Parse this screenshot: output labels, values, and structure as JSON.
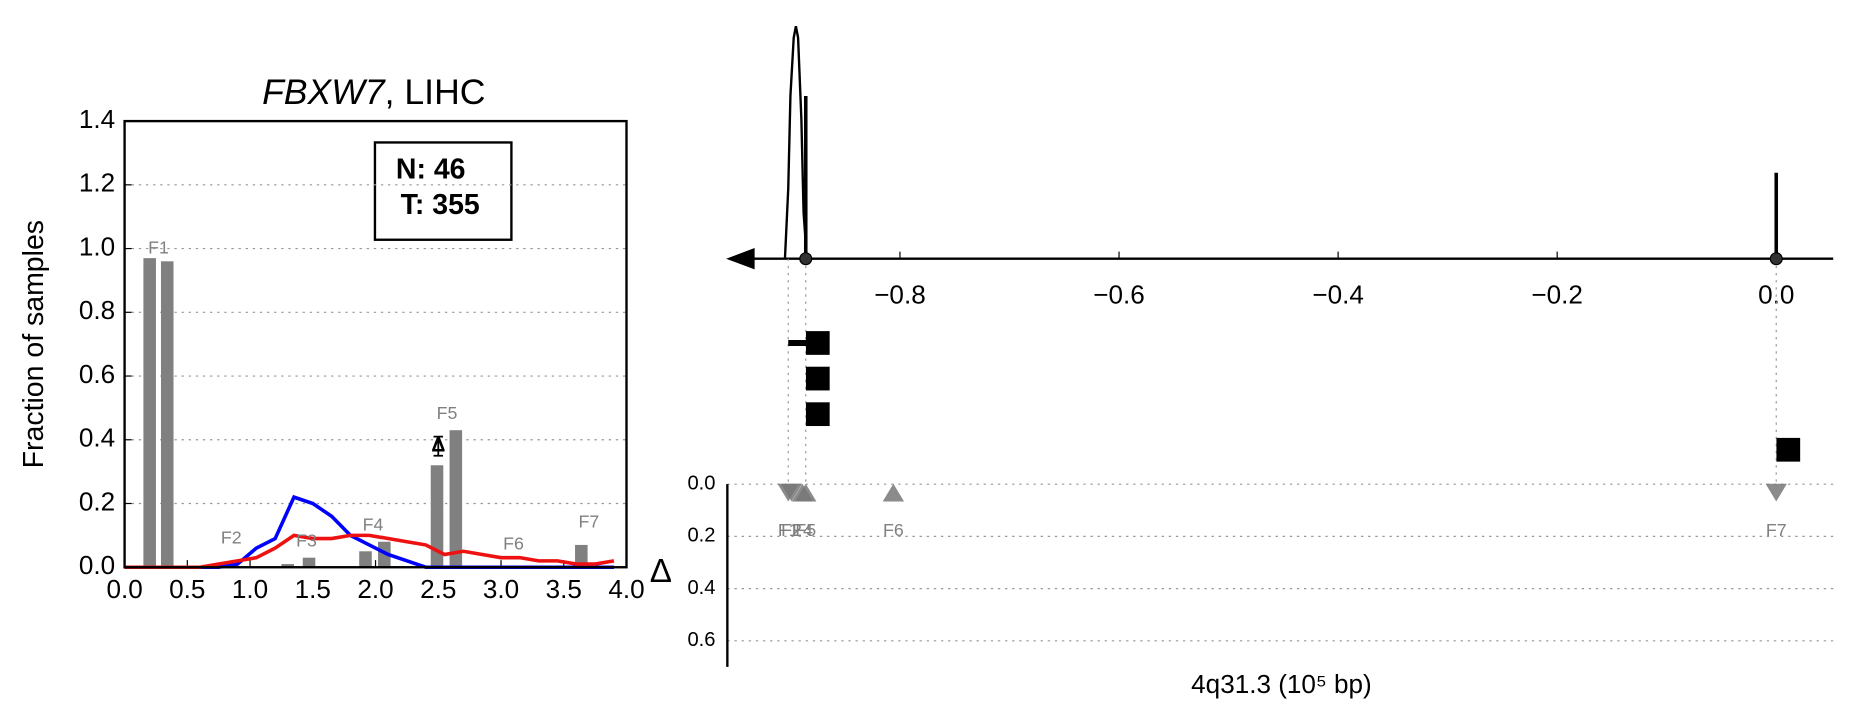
{
  "chart_data": [
    {
      "type": "bar",
      "title": [
        "FBXW7",
        ", LIHC"
      ],
      "ylabel": "Fraction of samples",
      "annotation": [
        "N: 46",
        "T: 355"
      ],
      "xlim": [
        0,
        4
      ],
      "ylim": [
        0,
        1.4
      ],
      "xticks": [
        {
          "value": 0,
          "label": "0.0"
        },
        {
          "value": 0.5,
          "label": "0.5"
        },
        {
          "value": 1,
          "label": "1.0"
        },
        {
          "value": 1.5,
          "label": "1.5"
        },
        {
          "value": 2,
          "label": "2.0"
        },
        {
          "value": 2.5,
          "label": "2.5"
        },
        {
          "value": 3,
          "label": "3.0"
        },
        {
          "value": 3.5,
          "label": "3.5"
        },
        {
          "value": 4,
          "label": "4.0"
        }
      ],
      "yticks": [
        {
          "value": 0,
          "label": "0.0"
        },
        {
          "value": 0.2,
          "label": "0.2"
        },
        {
          "value": 0.4,
          "label": "0.4"
        },
        {
          "value": 0.6,
          "label": "0.6"
        },
        {
          "value": 0.8,
          "label": "0.8"
        },
        {
          "value": 1,
          "label": "1.0"
        },
        {
          "value": 1.2,
          "label": "1.2"
        },
        {
          "value": 1.4,
          "label": "1.4"
        }
      ],
      "grid": true,
      "bar_color": "#808080",
      "bars": {
        "x": [
          0.2,
          0.34,
          1.3,
          1.47,
          1.92,
          2.07,
          2.49,
          2.64,
          3.64
        ],
        "values": [
          0.97,
          0.96,
          0.01,
          0.03,
          0.05,
          0.08,
          0.32,
          0.43,
          0.07
        ]
      },
      "x": [
        0,
        0.15,
        0.3,
        0.45,
        0.6,
        0.75,
        0.9,
        1.05,
        1.2,
        1.35,
        1.5,
        1.65,
        1.8,
        1.95,
        2.1,
        2.25,
        2.4,
        2.55,
        2.7,
        2.85,
        3.0,
        3.15,
        3.3,
        3.45,
        3.6,
        3.75,
        3.9
      ],
      "series": [
        {
          "color": "#0000ff",
          "values": [
            0,
            0,
            0,
            0,
            0,
            0,
            0.01,
            0.06,
            0.09,
            0.22,
            0.2,
            0.16,
            0.1,
            0.07,
            0.04,
            0.02,
            0,
            0,
            0,
            0,
            0,
            0,
            0,
            0,
            0,
            0,
            0
          ]
        },
        {
          "color": "#ee1111",
          "values": [
            0,
            0,
            0,
            0,
            0,
            0.01,
            0.02,
            0.03,
            0.06,
            0.1,
            0.09,
            0.09,
            0.1,
            0.1,
            0.09,
            0.08,
            0.07,
            0.04,
            0.05,
            0.04,
            0.03,
            0.03,
            0.02,
            0.02,
            0.01,
            0.01,
            0.02
          ]
        }
      ],
      "fragment_labels": [
        {
          "label": "F1",
          "x": 0.27,
          "y": 1.0
        },
        {
          "label": "F2",
          "x": 0.85,
          "y": 0.09
        },
        {
          "label": "F3",
          "x": 1.45,
          "y": 0.08
        },
        {
          "label": "F4",
          "x": 1.98,
          "y": 0.13
        },
        {
          "label": "F5",
          "x": 2.57,
          "y": 0.48
        },
        {
          "label": "F6",
          "x": 3.1,
          "y": 0.07
        },
        {
          "label": "F7",
          "x": 3.7,
          "y": 0.14
        }
      ],
      "marker": {
        "label": "Δ",
        "x": 2.5,
        "value": 0.38,
        "error": 0.03
      }
    },
    {
      "type": "genome",
      "xlabel": "4q31.3 (10⁵ bp)",
      "ylabel": "Δ",
      "xlim": [
        -0.95,
        0.052
      ],
      "xticks": [
        {
          "value": -0.8,
          "label": "−0.8"
        },
        {
          "value": -0.6,
          "label": "−0.6"
        },
        {
          "value": -0.4,
          "label": "−0.4"
        },
        {
          "value": -0.2,
          "label": "−0.2"
        },
        {
          "value": 0,
          "label": "0.0"
        }
      ],
      "density": {
        "x": [
          -0.905,
          -0.902,
          -0.9,
          -0.897,
          -0.895,
          -0.893,
          -0.89,
          -0.888,
          -0.885
        ],
        "values": [
          0,
          0.3,
          0.7,
          0.95,
          1.0,
          0.95,
          0.6,
          0.2,
          0
        ]
      },
      "density_lim": [
        0,
        1
      ],
      "spikes": {
        "x": [
          -0.886,
          0.0
        ],
        "values": [
          0.7,
          0.37
        ]
      },
      "segments": {
        "x": [
          -0.875,
          -0.875,
          -0.875,
          0.011
        ],
        "errors": [
          0.027,
          0.004,
          0.003,
          0.002
        ]
      },
      "delta_lim": [
        0,
        0.7
      ],
      "delta_ticks": [
        {
          "value": 0,
          "label": "0.0"
        },
        {
          "value": 0.2,
          "label": "0.2"
        },
        {
          "value": 0.4,
          "label": "0.4"
        },
        {
          "value": 0.6,
          "label": "0.6"
        }
      ],
      "triangles": [
        {
          "label": "F1",
          "x": -0.902,
          "value": 0.03,
          "dir": "down"
        },
        {
          "label": "F2",
          "x": -0.899,
          "value": 0.03,
          "dir": "down"
        },
        {
          "label": "F4",
          "x": -0.889,
          "value": 0.03,
          "dir": "up"
        },
        {
          "label": "F5",
          "x": -0.886,
          "value": 0.03,
          "dir": "up"
        },
        {
          "label": "F6",
          "x": -0.806,
          "value": 0.03,
          "dir": "up"
        },
        {
          "label": "F7",
          "x": 0.0,
          "value": 0.03,
          "dir": "down"
        }
      ],
      "triangle_color": "#777777"
    }
  ]
}
